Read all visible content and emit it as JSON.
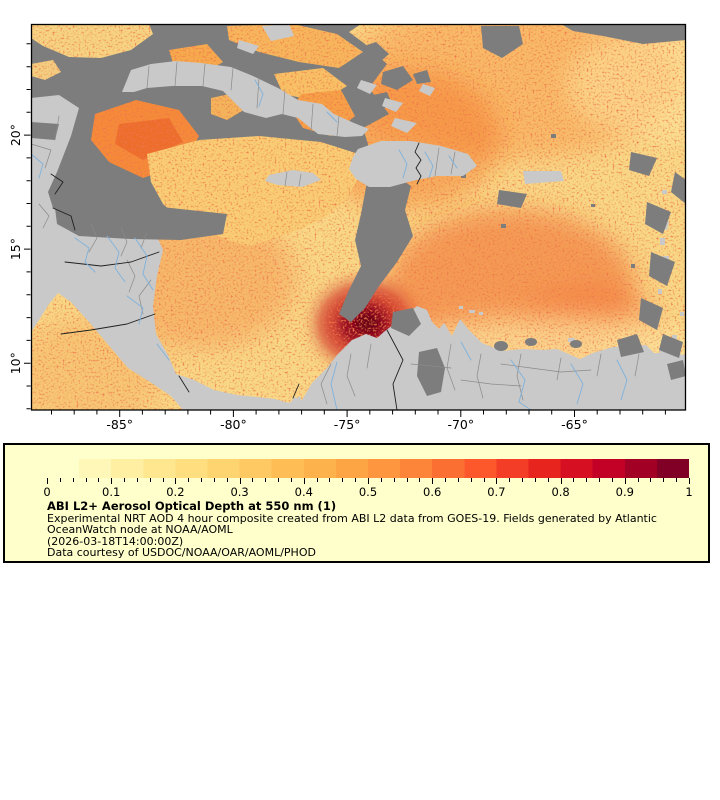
{
  "figure": {
    "map": {
      "x_axis": {
        "tick_labels": [
          "-85°",
          "-80°",
          "-75°",
          "-70°",
          "-65°"
        ]
      },
      "y_axis": {
        "tick_labels": [
          "20°",
          "15°",
          "10°"
        ]
      }
    },
    "legend": {
      "colorbar": {
        "tick_labels": [
          "0",
          "0.1",
          "0.2",
          "0.3",
          "0.4",
          "0.5",
          "0.6",
          "0.7",
          "0.8",
          "0.9",
          "1"
        ],
        "steps": [
          "#ffffcc",
          "#fff7b7",
          "#ffefa3",
          "#fee78f",
          "#fede7f",
          "#fed471",
          "#fec963",
          "#febd55",
          "#feb24c",
          "#fda445",
          "#fd963e",
          "#fd8539",
          "#fc6f33",
          "#fc582c",
          "#f43d26",
          "#e8241e",
          "#d60f23",
          "#c30026",
          "#a30026",
          "#800026"
        ]
      },
      "title": "ABI L2+ Aerosol Optical Depth at 550 nm (1)",
      "description_line1": "Experimental NRT AOD 4 hour composite created from ABI L2 data from GOES-19. Fields generated by Atlantic",
      "description_line2": "OceanWatch node at NOAA/AOML",
      "timestamp_line": "(2026-03-18T14:00:00Z)",
      "courtesy_line": "Data courtesy of USDOC/NOAA/OAR/AOML/PHOD"
    },
    "colors": {
      "no_data": "#7d7d7d",
      "land": "#c9c9c9",
      "river": "#7fb2dc",
      "admin_border": "#8a8a8a",
      "country_border": "#202020",
      "legend_bg": "#ffffcc",
      "frame": "#000000",
      "page_bg": "#ffffff",
      "aod_base": "#f8d887"
    }
  },
  "chart_data": {
    "type": "heatmap",
    "title": "ABI L2+ Aerosol Optical Depth at 550 nm (1)",
    "variable": "Aerosol Optical Depth at 550 nm",
    "colorbar": {
      "min": 0,
      "max": 1,
      "major_tick_step": 0.1,
      "minor_tick_step": 0.02,
      "palette": "YlOrRd"
    },
    "x_axis": {
      "major_ticks_deg": [
        -85,
        -80,
        -75,
        -70,
        -65
      ],
      "minor_tick_step_deg": 1,
      "range_deg": [
        -88.9,
        -60.1
      ]
    },
    "y_axis": {
      "major_ticks_deg": [
        20,
        15,
        10
      ],
      "minor_tick_step_deg": 1,
      "range_deg": [
        7.9,
        24.9
      ]
    },
    "features": [
      {
        "name": "intense-aod-plume",
        "lon": -76.2,
        "lat": 12.2,
        "aod_approx": 0.95
      },
      {
        "name": "moderate-dust-field",
        "region": "tropical Atlantic and eastern Caribbean",
        "aod_approx": "0.2-0.6"
      },
      {
        "name": "elevated-aod-band",
        "region": "central Caribbean east of Nicaragua",
        "aod_approx": "0.4-0.8"
      },
      {
        "name": "no-retrieval-cloud-mask",
        "region": "Gulf of Mexico / northwest Caribbean / around Lesser Antilles",
        "rendering": "dark gray"
      },
      {
        "name": "land-mask",
        "region": "Yucatan, Central America, Cuba, Hispaniola, Puerto Rico, Jamaica, Bahamas, northern South America, Lesser Antilles",
        "rendering": "light gray with borders and rivers"
      }
    ]
  }
}
